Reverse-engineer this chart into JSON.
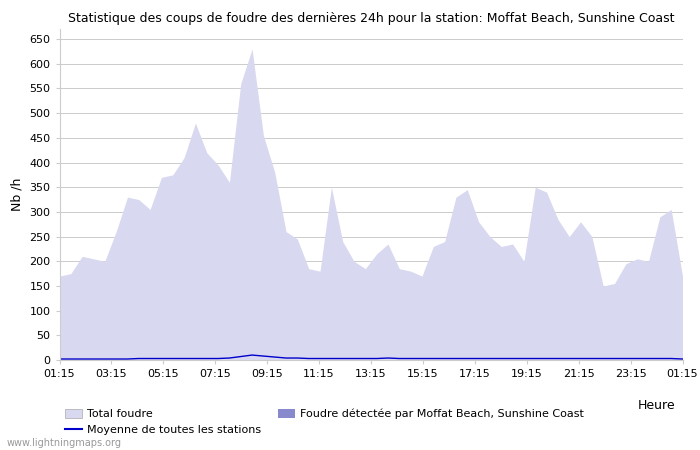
{
  "title": "Statistique des coups de foudre des dernières 24h pour la station: Moffat Beach, Sunshine Coast",
  "xlabel": "Heure",
  "ylabel": "Nb /h",
  "xlim_labels": [
    "01:15",
    "03:15",
    "05:15",
    "07:15",
    "09:15",
    "11:15",
    "13:15",
    "15:15",
    "17:15",
    "19:15",
    "21:15",
    "23:15",
    "01:15"
  ],
  "ylim": [
    0,
    670
  ],
  "yticks": [
    0,
    50,
    100,
    150,
    200,
    250,
    300,
    350,
    400,
    450,
    500,
    550,
    600,
    650
  ],
  "bg_color": "#ffffff",
  "grid_color": "#cccccc",
  "area_total_color": "#d8d8f0",
  "area_local_color": "#8888cc",
  "line_mean_color": "#0000cc",
  "watermark": "www.lightningmaps.org",
  "legend": {
    "total": "Total foudre",
    "mean": "Moyenne de toutes les stations",
    "local": "Foudre détectée par Moffat Beach, Sunshine Coast"
  },
  "total_foudre": [
    170,
    175,
    210,
    205,
    200,
    260,
    330,
    325,
    305,
    370,
    375,
    410,
    480,
    420,
    395,
    360,
    560,
    630,
    455,
    380,
    260,
    245,
    185,
    180,
    350,
    240,
    200,
    185,
    215,
    235,
    185,
    180,
    170,
    230,
    240,
    330,
    345,
    280,
    250,
    230,
    235,
    200,
    350,
    340,
    285,
    250,
    280,
    250,
    150,
    155,
    195,
    205,
    200,
    290,
    305,
    170
  ],
  "local_foudre": [
    0,
    0,
    0,
    0,
    0,
    0,
    0,
    0,
    0,
    0,
    0,
    0,
    0,
    0,
    0,
    0,
    0,
    0,
    0,
    0,
    0,
    0,
    0,
    0,
    0,
    0,
    0,
    0,
    0,
    0,
    0,
    0,
    0,
    0,
    0,
    0,
    0,
    0,
    0,
    0,
    0,
    0,
    0,
    0,
    0,
    0,
    0,
    0,
    0,
    0,
    0,
    0,
    0,
    0,
    0,
    0
  ],
  "mean_foudre": [
    2,
    2,
    2,
    2,
    2,
    2,
    2,
    3,
    3,
    3,
    3,
    3,
    3,
    3,
    3,
    4,
    7,
    10,
    8,
    6,
    4,
    4,
    3,
    3,
    3,
    3,
    3,
    3,
    3,
    4,
    3,
    3,
    3,
    3,
    3,
    3,
    3,
    3,
    3,
    3,
    3,
    3,
    3,
    3,
    3,
    3,
    3,
    3,
    3,
    3,
    3,
    3,
    3,
    3,
    3,
    2
  ],
  "title_fontsize": 9,
  "tick_fontsize": 8,
  "ylabel_fontsize": 9,
  "legend_fontsize": 8
}
